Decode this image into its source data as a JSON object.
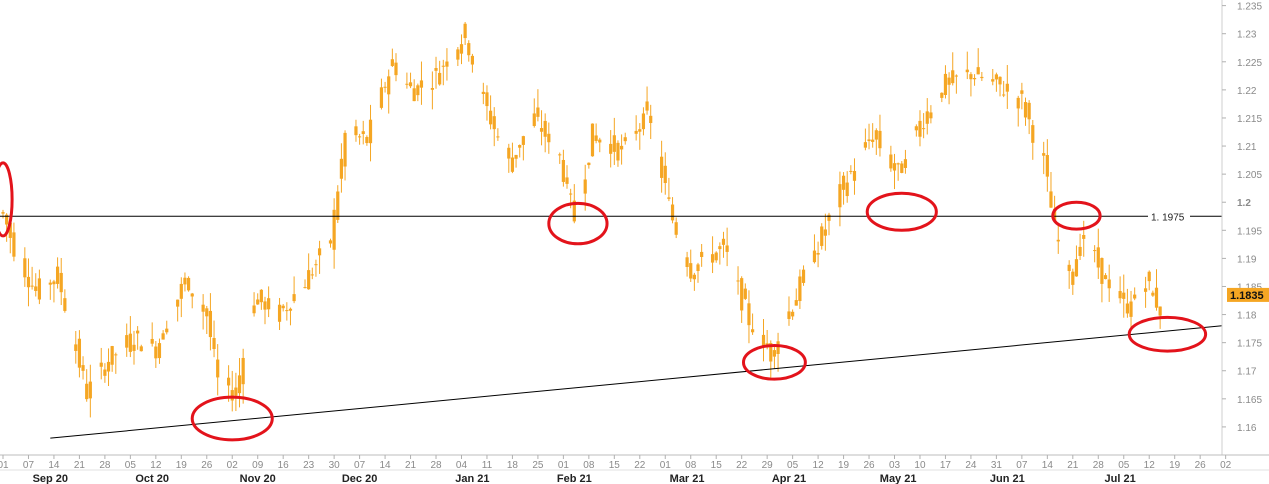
{
  "chart_data": {
    "type": "candlestick",
    "title": "",
    "xlabel": "",
    "ylabel": "",
    "ylim": [
      1.155,
      1.236
    ],
    "y_ticks": [
      "1.16",
      "1.165",
      "1.17",
      "1.175",
      "1.18",
      "1.185",
      "1.19",
      "1.195",
      "1.2",
      "1.205",
      "1.21",
      "1.215",
      "1.22",
      "1.225",
      "1.23",
      "1.235"
    ],
    "y_major_tick": "1.2",
    "x_day_ticks": [
      "01",
      "07",
      "14",
      "21",
      "28",
      "05",
      "12",
      "19",
      "26",
      "02",
      "09",
      "16",
      "23",
      "30",
      "07",
      "14",
      "21",
      "28",
      "04",
      "11",
      "18",
      "25",
      "01",
      "08",
      "15",
      "22",
      "01",
      "08",
      "15",
      "22",
      "29",
      "05",
      "12",
      "19",
      "26",
      "03",
      "10",
      "17",
      "24",
      "31",
      "07",
      "14",
      "21",
      "28",
      "05",
      "12",
      "19",
      "26",
      "02"
    ],
    "month_labels": [
      {
        "label": "Sep 20",
        "date": "2020-09-14"
      },
      {
        "label": "Oct 20",
        "date": "2020-10-12"
      },
      {
        "label": "Nov 20",
        "date": "2020-11-10"
      },
      {
        "label": "Dec 20",
        "date": "2020-12-08"
      },
      {
        "label": "Jan 21",
        "date": "2021-01-08"
      },
      {
        "label": "Feb 21",
        "date": "2021-02-05"
      },
      {
        "label": "Mar 21",
        "date": "2021-03-08"
      },
      {
        "label": "Apr 21",
        "date": "2021-04-05"
      },
      {
        "label": "May 21",
        "date": "2021-05-05"
      },
      {
        "label": "Jun 21",
        "date": "2021-06-04"
      },
      {
        "label": "Jul 21",
        "date": "2021-07-05"
      }
    ],
    "x_range": [
      "2020-09-01",
      "2021-08-02"
    ],
    "candle_color": "#f5a623",
    "anchors": [
      [
        "2020-09-01",
        1.198
      ],
      [
        "2020-09-04",
        1.192
      ],
      [
        "2020-09-10",
        1.184
      ],
      [
        "2020-09-16",
        1.187
      ],
      [
        "2020-09-24",
        1.166
      ],
      [
        "2020-09-30",
        1.172
      ],
      [
        "2020-10-07",
        1.176
      ],
      [
        "2020-10-13",
        1.174
      ],
      [
        "2020-10-21",
        1.186
      ],
      [
        "2020-10-27",
        1.18
      ],
      [
        "2020-10-30",
        1.168
      ],
      [
        "2020-11-04",
        1.166
      ],
      [
        "2020-11-09",
        1.183
      ],
      [
        "2020-11-16",
        1.18
      ],
      [
        "2020-11-23",
        1.186
      ],
      [
        "2020-11-30",
        1.193
      ],
      [
        "2020-12-04",
        1.212
      ],
      [
        "2020-12-10",
        1.211
      ],
      [
        "2020-12-17",
        1.225
      ],
      [
        "2020-12-22",
        1.22
      ],
      [
        "2020-12-28",
        1.222
      ],
      [
        "2021-01-06",
        1.23
      ],
      [
        "2021-01-11",
        1.218
      ],
      [
        "2021-01-18",
        1.207
      ],
      [
        "2021-01-25",
        1.215
      ],
      [
        "2021-02-01",
        1.208
      ],
      [
        "2021-02-05",
        1.197
      ],
      [
        "2021-02-10",
        1.212
      ],
      [
        "2021-02-18",
        1.209
      ],
      [
        "2021-02-25",
        1.216
      ],
      [
        "2021-03-04",
        1.197
      ],
      [
        "2021-03-09",
        1.188
      ],
      [
        "2021-03-18",
        1.192
      ],
      [
        "2021-03-25",
        1.179
      ],
      [
        "2021-03-31",
        1.173
      ],
      [
        "2021-04-06",
        1.182
      ],
      [
        "2021-04-12",
        1.191
      ],
      [
        "2021-04-20",
        1.203
      ],
      [
        "2021-04-28",
        1.212
      ],
      [
        "2021-05-05",
        1.205
      ],
      [
        "2021-05-11",
        1.214
      ],
      [
        "2021-05-18",
        1.221
      ],
      [
        "2021-05-25",
        1.223
      ],
      [
        "2021-06-01",
        1.221
      ],
      [
        "2021-06-08",
        1.218
      ],
      [
        "2021-06-14",
        1.207
      ],
      [
        "2021-06-17",
        1.195
      ],
      [
        "2021-06-21",
        1.187
      ],
      [
        "2021-06-25",
        1.194
      ],
      [
        "2021-07-01",
        1.186
      ],
      [
        "2021-07-07",
        1.181
      ],
      [
        "2021-07-12",
        1.186
      ],
      [
        "2021-07-16",
        1.181
      ]
    ],
    "horizontal_line": {
      "value": 1.1975,
      "label": "1. 1975",
      "color": "#000000"
    },
    "trendline": {
      "from": [
        "2020-09-14",
        1.158
      ],
      "to": [
        "2021-08-02",
        1.178
      ],
      "color": "#000000"
    },
    "last_price": {
      "label": "1.1835",
      "value": 1.1835,
      "color": "#f5a623"
    },
    "highlight_circles": [
      {
        "date": "2020-09-01",
        "value": 1.2005,
        "rx_days": 2.5,
        "ry_value": 0.0065,
        "color": "#e3131b"
      },
      {
        "date": "2020-11-03",
        "value": 1.1615,
        "rx_days": 11,
        "ry_value": 0.0038,
        "color": "#e3131b"
      },
      {
        "date": "2021-02-06",
        "value": 1.1962,
        "rx_days": 8,
        "ry_value": 0.0036,
        "color": "#e3131b"
      },
      {
        "date": "2021-04-01",
        "value": 1.1715,
        "rx_days": 8.5,
        "ry_value": 0.003,
        "color": "#e3131b"
      },
      {
        "date": "2021-05-06",
        "value": 1.1983,
        "rx_days": 9.5,
        "ry_value": 0.0033,
        "color": "#e3131b"
      },
      {
        "date": "2021-06-23",
        "value": 1.1976,
        "rx_days": 6.5,
        "ry_value": 0.0024,
        "color": "#e3131b"
      },
      {
        "date": "2021-07-18",
        "value": 1.1765,
        "rx_days": 10.5,
        "ry_value": 0.003,
        "color": "#e3131b"
      }
    ]
  }
}
